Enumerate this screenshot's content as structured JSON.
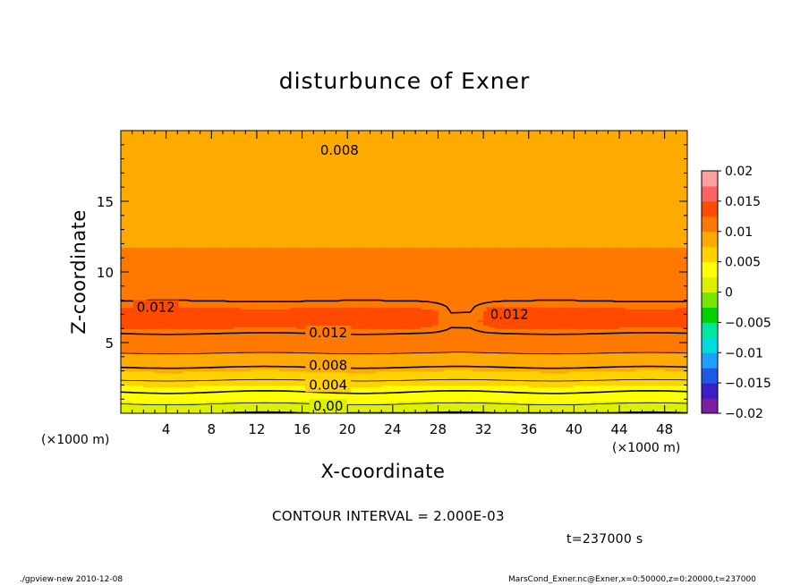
{
  "chart_data": {
    "type": "heatmap",
    "title": "disturbunce of Exner",
    "xlabel": "X-coordinate",
    "ylabel": "Z-coordinate",
    "x_unit_left": "(×1000 m)",
    "x_unit_right": "(×1000 m)",
    "xlim": [
      0,
      50
    ],
    "ylim": [
      0,
      20
    ],
    "x_ticks": [
      4,
      8,
      12,
      16,
      20,
      24,
      28,
      32,
      36,
      40,
      44,
      48
    ],
    "y_ticks": [
      5,
      10,
      15
    ],
    "contour_interval_text": "CONTOUR INTERVAL = 2.000E-03",
    "time_text": "t=237000 s",
    "colorbar": {
      "range": [
        -0.02,
        0.02
      ],
      "tick_labels": [
        "0.02",
        "0.015",
        "0.01",
        "0.005",
        "0",
        "−0.005",
        "−0.01",
        "−0.015",
        "−0.02"
      ],
      "tick_values": [
        0.02,
        0.015,
        0.01,
        0.005,
        0,
        -0.005,
        -0.01,
        -0.015,
        -0.02
      ],
      "colors": [
        "#7a1fa2",
        "#3c1fc8",
        "#1e5ae6",
        "#1ea0ff",
        "#00dcdc",
        "#00e6a0",
        "#00d200",
        "#78e600",
        "#dcf000",
        "#ffff00",
        "#ffd200",
        "#ffaa00",
        "#ff7800",
        "#ff4a00",
        "#ff6464",
        "#ffa0a0"
      ]
    },
    "vertical_profile": {
      "z": [
        0,
        0.5,
        1,
        1.5,
        2,
        2.5,
        3,
        3.5,
        4,
        4.5,
        5,
        5.5,
        6,
        6.5,
        7,
        7.5,
        8,
        9,
        10,
        11,
        12,
        13,
        14,
        15,
        16,
        17,
        18,
        19,
        20
      ],
      "value": [
        0.0,
        0.0015,
        0.003,
        0.004,
        0.005,
        0.0065,
        0.0075,
        0.0085,
        0.0095,
        0.0105,
        0.0115,
        0.0118,
        0.0125,
        0.0128,
        0.0128,
        0.0125,
        0.0119,
        0.0113,
        0.0108,
        0.0103,
        0.0099,
        0.0095,
        0.0092,
        0.0089,
        0.0086,
        0.0083,
        0.008,
        0.0077,
        0.0075
      ]
    },
    "contour_labels": [
      {
        "text": "0.008",
        "x": 19.3,
        "z": 18.6
      },
      {
        "text": "0.012",
        "x": 3.1,
        "z": 7.5
      },
      {
        "text": "0.012",
        "x": 18.3,
        "z": 5.7
      },
      {
        "text": "0.012",
        "x": 34.3,
        "z": 7.0
      },
      {
        "text": "0.008",
        "x": 18.3,
        "z": 3.4
      },
      {
        "text": "0.004",
        "x": 18.3,
        "z": 2.0
      },
      {
        "text": "0.00",
        "x": 18.3,
        "z": 0.5
      }
    ]
  },
  "footer": {
    "left": "./gpview-new   2010-12-08",
    "right": "MarsCond_Exner.nc@Exner,x=0:50000,z=0:20000,t=237000"
  }
}
